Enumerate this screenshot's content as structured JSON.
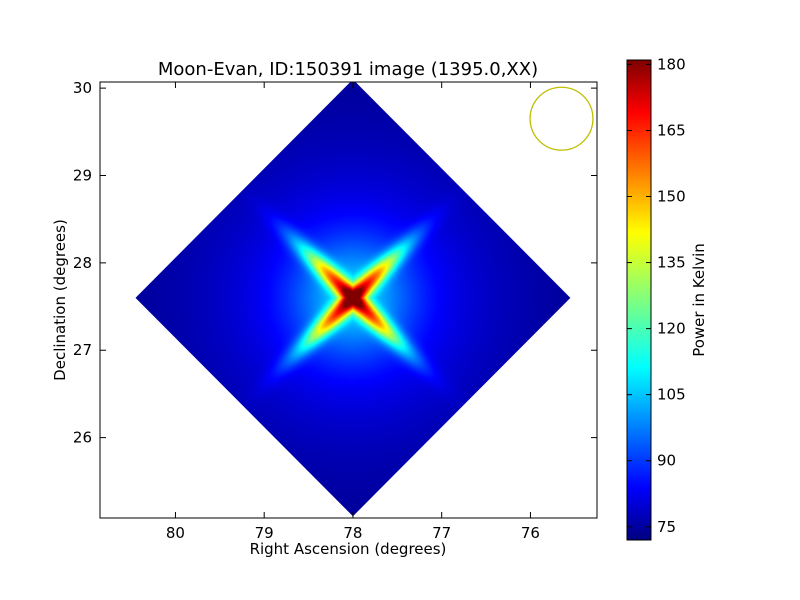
{
  "chart_data": {
    "type": "heatmap",
    "title": "Moon-Evan, ID:150391 image (1395.0,XX)",
    "xlabel": "Right Ascension (degrees)",
    "ylabel": "Declination (degrees)",
    "xlim": [
      80.85,
      75.25
    ],
    "ylim": [
      25.08,
      30.07
    ],
    "xticks": [
      80,
      79,
      78,
      77,
      76
    ],
    "yticks": [
      26,
      27,
      28,
      29,
      30
    ],
    "colorbar": {
      "label": "Power in Kelvin",
      "range": [
        72,
        181
      ],
      "ticks": [
        75,
        90,
        105,
        120,
        135,
        150,
        165,
        180
      ],
      "colormap": "jet"
    },
    "field": {
      "shape": "diamond",
      "center": [
        78.0,
        27.6
      ],
      "half_width_deg": 2.45,
      "half_height_deg": 2.5,
      "background_kelvin_center": 88,
      "background_kelvin_edge": 74
    },
    "source": {
      "position": [
        78.0,
        27.6
      ],
      "peak_kelvin": 181,
      "pattern": "four-armed cross",
      "arm_length_deg": 0.55
    },
    "beam_marker": {
      "center": [
        75.65,
        29.65
      ],
      "radius_deg": 0.36,
      "color": "#bfbf00"
    }
  }
}
